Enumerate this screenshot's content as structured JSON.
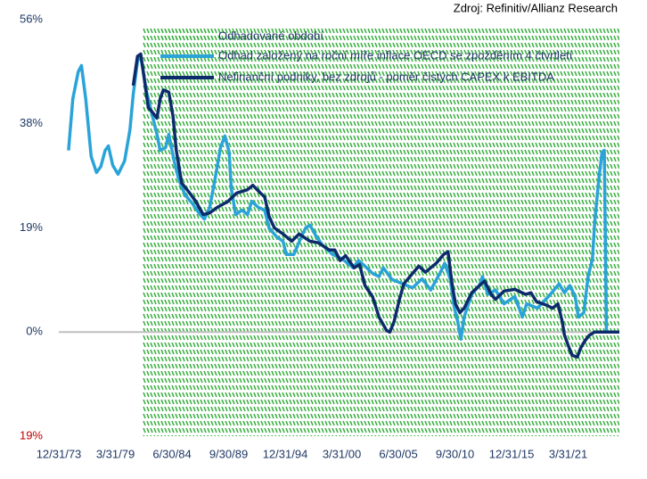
{
  "chart_data": {
    "type": "line",
    "source": "Zdroj: Refinitiv/Allianz Research",
    "xlim": [
      1974,
      2026
    ],
    "ylim": [
      -18.8,
      56.4
    ],
    "xticks": [
      {
        "value": 1974.0,
        "label": "12/31/73"
      },
      {
        "value": 1979.25,
        "label": "3/31/79"
      },
      {
        "value": 1984.5,
        "label": "6/30/84"
      },
      {
        "value": 1989.75,
        "label": "9/30/89"
      },
      {
        "value": 1995.0,
        "label": "12/31/94"
      },
      {
        "value": 2000.25,
        "label": "3/31/00"
      },
      {
        "value": 2005.5,
        "label": "6/30/05"
      },
      {
        "value": 2010.75,
        "label": "9/30/10"
      },
      {
        "value": 2016.0,
        "label": "12/31/15"
      },
      {
        "value": 2021.25,
        "label": "3/31/21"
      }
    ],
    "yticks": [
      {
        "value": 56.4,
        "label": "56%"
      },
      {
        "value": 37.6,
        "label": "38%"
      },
      {
        "value": 18.8,
        "label": "19%"
      },
      {
        "value": 0,
        "label": "0%"
      },
      {
        "value": -18.8,
        "label": "19%"
      }
    ],
    "tick_color": "#1f3864",
    "negative_tick_color": "#c00000",
    "shaded_region": {
      "name": "Odhadované období",
      "x": [
        1981.75,
        2026
      ],
      "color": "#3cb043"
    },
    "series": [
      {
        "name": "Odhad založený na roční míře inflace OECD se zpožděním 4 čtvrtletí",
        "color": "#2aa3d8",
        "x": [
          1974.9,
          1975.3,
          1975.8,
          1976.1,
          1976.5,
          1977.0,
          1977.5,
          1977.9,
          1978.3,
          1978.6,
          1979.0,
          1979.5,
          1980.1,
          1980.6,
          1980.9,
          1981.3,
          1981.6,
          1982.1,
          1982.6,
          1983.1,
          1983.4,
          1983.9,
          1984.2,
          1984.7,
          1985.1,
          1985.7,
          1986.4,
          1987.1,
          1987.5,
          1988.0,
          1988.5,
          1989.0,
          1989.4,
          1989.8,
          1990.0,
          1990.4,
          1991.0,
          1991.5,
          1991.9,
          1992.5,
          1993.1,
          1993.5,
          1994.2,
          1994.8,
          1995.1,
          1995.8,
          1996.5,
          1996.9,
          1997.3,
          1997.9,
          1998.5,
          1999.4,
          2000.3,
          2001.3,
          2001.8,
          2002.4,
          2003.1,
          2003.7,
          2004.1,
          2004.9,
          2005.9,
          2006.8,
          2007.7,
          2008.5,
          2009.4,
          2009.8,
          2010.3,
          2010.7,
          2011.0,
          2011.3,
          2011.6,
          2012.3,
          2013.0,
          2013.3,
          2013.8,
          2014.5,
          2015.3,
          2016.3,
          2016.7,
          2017.0,
          2017.4,
          2018.4,
          2019.6,
          2020.4,
          2020.9,
          2021.4,
          2021.9,
          2022.2,
          2022.7,
          2023.1,
          2023.5,
          2023.7,
          2024.1,
          2024.4,
          2024.6,
          2024.8,
          2026.0
        ],
        "values": [
          32.8,
          42.1,
          47.0,
          48.1,
          42.1,
          31.7,
          28.8,
          29.9,
          32.8,
          33.6,
          30.1,
          28.5,
          30.9,
          36.5,
          42.9,
          48.9,
          49.8,
          43.7,
          39.7,
          35.7,
          32.8,
          33.3,
          35.7,
          30.9,
          27.7,
          24.8,
          23.2,
          21.2,
          20.4,
          22.5,
          27.7,
          33.3,
          35.4,
          32.5,
          26.0,
          21.2,
          22.0,
          21.2,
          23.6,
          22.5,
          22.0,
          18.8,
          17.2,
          16.4,
          14.0,
          14.0,
          17.2,
          18.8,
          19.3,
          17.2,
          15.6,
          14.0,
          13.2,
          11.6,
          12.9,
          11.9,
          10.6,
          10.0,
          11.6,
          9.5,
          8.7,
          8.0,
          9.6,
          7.6,
          10.8,
          12.4,
          9.6,
          4.3,
          1.9,
          -1.3,
          2.7,
          6.8,
          8.4,
          10.0,
          6.8,
          7.6,
          5.1,
          6.4,
          4.3,
          2.7,
          5.1,
          4.3,
          6.8,
          8.7,
          7.1,
          8.4,
          6.4,
          2.7,
          3.5,
          10.0,
          13.2,
          19.6,
          27.7,
          32.5,
          32.8,
          0,
          0
        ]
      },
      {
        "name": "Nefinanční podniky, bez zdrojů - poměr čistých CAPEX k EBITDA",
        "color": "#0d2b6b",
        "x": [
          1980.9,
          1981.3,
          1981.6,
          1981.9,
          1982.3,
          1982.6,
          1983.1,
          1983.4,
          1983.7,
          1984.2,
          1984.6,
          1984.9,
          1985.4,
          1986.1,
          1986.7,
          1987.4,
          1988.0,
          1988.7,
          1989.7,
          1990.5,
          1991.5,
          1992.0,
          1992.7,
          1993.1,
          1993.5,
          1994.0,
          1994.8,
          1995.6,
          1996.3,
          1997.3,
          1998.1,
          1999.1,
          1999.6,
          2000.1,
          2000.6,
          2001.4,
          2001.9,
          2002.4,
          2003.1,
          2003.7,
          2004.4,
          2004.7,
          2005.1,
          2005.6,
          2006.0,
          2006.9,
          2007.4,
          2008.0,
          2009.0,
          2009.7,
          2010.1,
          2010.5,
          2010.8,
          2011.2,
          2011.6,
          2012.3,
          2013.2,
          2013.5,
          2014.1,
          2014.5,
          2015.3,
          2016.3,
          2017.3,
          2017.8,
          2018.3,
          2019.3,
          2019.8,
          2020.3,
          2020.7,
          2020.9,
          2021.2,
          2021.6,
          2022.1,
          2022.4,
          2022.8,
          2023.2,
          2023.7,
          2026.0
        ],
        "values": [
          44.5,
          49.8,
          50.2,
          46.1,
          40.5,
          39.9,
          38.6,
          42.1,
          43.7,
          43.3,
          38.9,
          32.8,
          26.9,
          25.2,
          23.6,
          21.2,
          21.5,
          22.5,
          23.6,
          25.1,
          25.7,
          26.5,
          25.1,
          24.4,
          20.9,
          18.8,
          17.7,
          16.4,
          17.7,
          16.4,
          16.1,
          14.8,
          14.8,
          12.9,
          13.8,
          11.6,
          12.2,
          8.4,
          6.4,
          2.7,
          0.3,
          0,
          1.9,
          5.9,
          8.7,
          10.8,
          11.9,
          10.8,
          12.4,
          14.0,
          14.5,
          8.4,
          5.1,
          3.5,
          4.3,
          7.1,
          8.7,
          9.2,
          6.8,
          5.9,
          7.4,
          7.7,
          6.8,
          7.1,
          5.5,
          4.8,
          4.3,
          5.1,
          1.9,
          -0.5,
          -2.1,
          -4.2,
          -4.5,
          -2.9,
          -1.6,
          -0.6,
          0,
          0
        ]
      }
    ]
  }
}
